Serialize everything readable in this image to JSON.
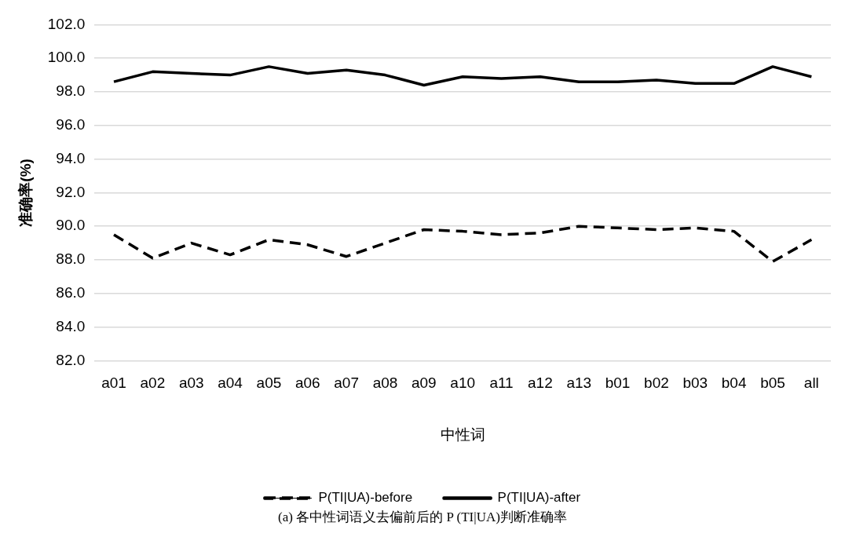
{
  "chart_data": {
    "type": "line",
    "xlabel": "中性词",
    "ylabel": "准确率(%)",
    "categories": [
      "a01",
      "a02",
      "a03",
      "a04",
      "a05",
      "a06",
      "a07",
      "a08",
      "a09",
      "a10",
      "a11",
      "a12",
      "a13",
      "b01",
      "b02",
      "b03",
      "b04",
      "b05",
      "all"
    ],
    "series": [
      {
        "name": "P(TI|UA)-before",
        "color": "#000000",
        "line_style": "dashed",
        "values": [
          89.5,
          88.1,
          89.0,
          88.3,
          89.2,
          88.9,
          88.2,
          89.0,
          89.8,
          89.7,
          89.5,
          89.6,
          90.0,
          89.9,
          89.8,
          89.9,
          89.7,
          87.9,
          89.2
        ]
      },
      {
        "name": "P(TI|UA)-after",
        "color": "#000000",
        "line_style": "solid",
        "values": [
          98.6,
          99.2,
          99.1,
          99.0,
          99.5,
          99.1,
          99.3,
          99.0,
          98.4,
          98.9,
          98.8,
          98.9,
          98.6,
          98.6,
          98.7,
          98.5,
          98.5,
          99.5,
          98.9
        ]
      }
    ],
    "ylim": [
      82,
      102
    ],
    "yticks": [
      {
        "value": 82,
        "label": "82.0"
      },
      {
        "value": 84,
        "label": "84.0"
      },
      {
        "value": 86,
        "label": "86.0"
      },
      {
        "value": 88,
        "label": "88.0"
      },
      {
        "value": 90,
        "label": "90.0"
      },
      {
        "value": 92,
        "label": "92.0"
      },
      {
        "value": 94,
        "label": "94.0"
      },
      {
        "value": 96,
        "label": "96.0"
      },
      {
        "value": 98,
        "label": "98.0"
      },
      {
        "value": 100,
        "label": "100.0"
      },
      {
        "value": 102,
        "label": "102.0"
      }
    ],
    "grid": "y",
    "legend": "bottom",
    "marker": "none",
    "annotations": [
      "(a)  各中性词语义去偏前后的 P (TI|UA)判断准确率"
    ]
  }
}
